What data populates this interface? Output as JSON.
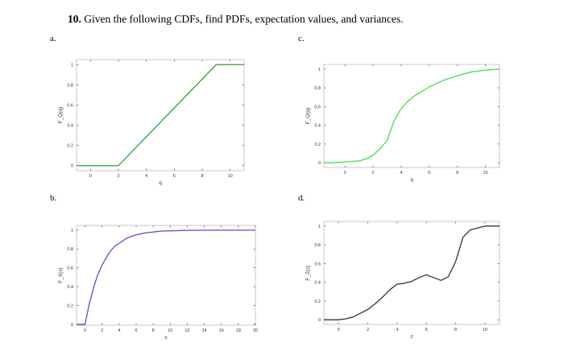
{
  "page": {
    "problem_number": "10.",
    "problem_text": "Given the following CDFs, find PDFs, expectation values, and variances."
  },
  "chart_data": [
    {
      "id": "a",
      "part_label": "a.",
      "type": "line",
      "xlabel": "q",
      "ylabel": "F_Q(q)",
      "xlim": [
        -1,
        11
      ],
      "ylim": [
        -0.05,
        1.05
      ],
      "xticks": [
        0,
        2,
        4,
        6,
        8,
        10
      ],
      "yticks": [
        0,
        0.2,
        0.4,
        0.6,
        0.8,
        1
      ],
      "color": "#2e9e2e",
      "series": [
        {
          "x": [
            -1,
            2,
            9,
            11
          ],
          "y": [
            0,
            0,
            1,
            1
          ]
        }
      ]
    },
    {
      "id": "b",
      "part_label": "b.",
      "type": "line",
      "xlabel": "x",
      "ylabel": "F_X(x)",
      "xlim": [
        -1,
        20
      ],
      "ylim": [
        -0.01,
        1.05
      ],
      "xticks": [
        0,
        2,
        4,
        6,
        8,
        10,
        12,
        14,
        16,
        18,
        20
      ],
      "yticks": [
        0,
        0.2,
        0.4,
        0.6,
        0.8,
        1
      ],
      "color": "#5555cc",
      "series": [
        {
          "x": [
            -1,
            0,
            0.5,
            1,
            1.5,
            2,
            2.5,
            3,
            3.5,
            4,
            5,
            6,
            7,
            8,
            9,
            10,
            12,
            14,
            16,
            18,
            20
          ],
          "y": [
            0,
            0,
            0.22,
            0.39,
            0.53,
            0.63,
            0.71,
            0.78,
            0.83,
            0.86,
            0.92,
            0.95,
            0.97,
            0.98,
            0.99,
            0.993,
            0.997,
            0.999,
            1,
            1,
            1
          ]
        }
      ]
    },
    {
      "id": "c",
      "part_label": "c.",
      "type": "line",
      "xlabel": "q",
      "ylabel": "F_Q(q)",
      "xlim": [
        -1.5,
        11
      ],
      "ylim": [
        -0.05,
        1.05
      ],
      "xticks": [
        0,
        2,
        4,
        6,
        8,
        10
      ],
      "yticks": [
        0,
        0.2,
        0.4,
        0.6,
        0.8,
        1
      ],
      "color": "#44dd44",
      "series": [
        {
          "x": [
            -1.5,
            -1,
            0,
            1,
            1.5,
            2,
            2.5,
            3,
            3.5,
            4,
            4.5,
            5,
            6,
            7,
            8,
            9,
            10,
            11
          ],
          "y": [
            0,
            0,
            0.01,
            0.02,
            0.04,
            0.08,
            0.15,
            0.24,
            0.45,
            0.58,
            0.66,
            0.72,
            0.81,
            0.88,
            0.93,
            0.97,
            0.99,
            1
          ]
        }
      ]
    },
    {
      "id": "d",
      "part_label": "d.",
      "type": "line",
      "xlabel": "z",
      "ylabel": "F_Z(z)",
      "xlim": [
        -1,
        11
      ],
      "ylim": [
        -0.05,
        1.05
      ],
      "xticks": [
        0,
        2,
        4,
        6,
        8,
        10
      ],
      "yticks": [
        0,
        0.2,
        0.4,
        0.6,
        0.8,
        1
      ],
      "color": "#333333",
      "series": [
        {
          "x": [
            -1,
            0,
            0.5,
            1,
            1.5,
            2,
            2.5,
            3,
            3.5,
            4,
            4.5,
            5,
            5.5,
            6,
            6.5,
            7,
            7.5,
            8,
            8.5,
            9,
            10,
            11
          ],
          "y": [
            0,
            0,
            0.01,
            0.03,
            0.07,
            0.11,
            0.17,
            0.24,
            0.32,
            0.38,
            0.39,
            0.41,
            0.45,
            0.48,
            0.45,
            0.42,
            0.46,
            0.62,
            0.88,
            0.96,
            1,
            1
          ]
        }
      ]
    }
  ]
}
